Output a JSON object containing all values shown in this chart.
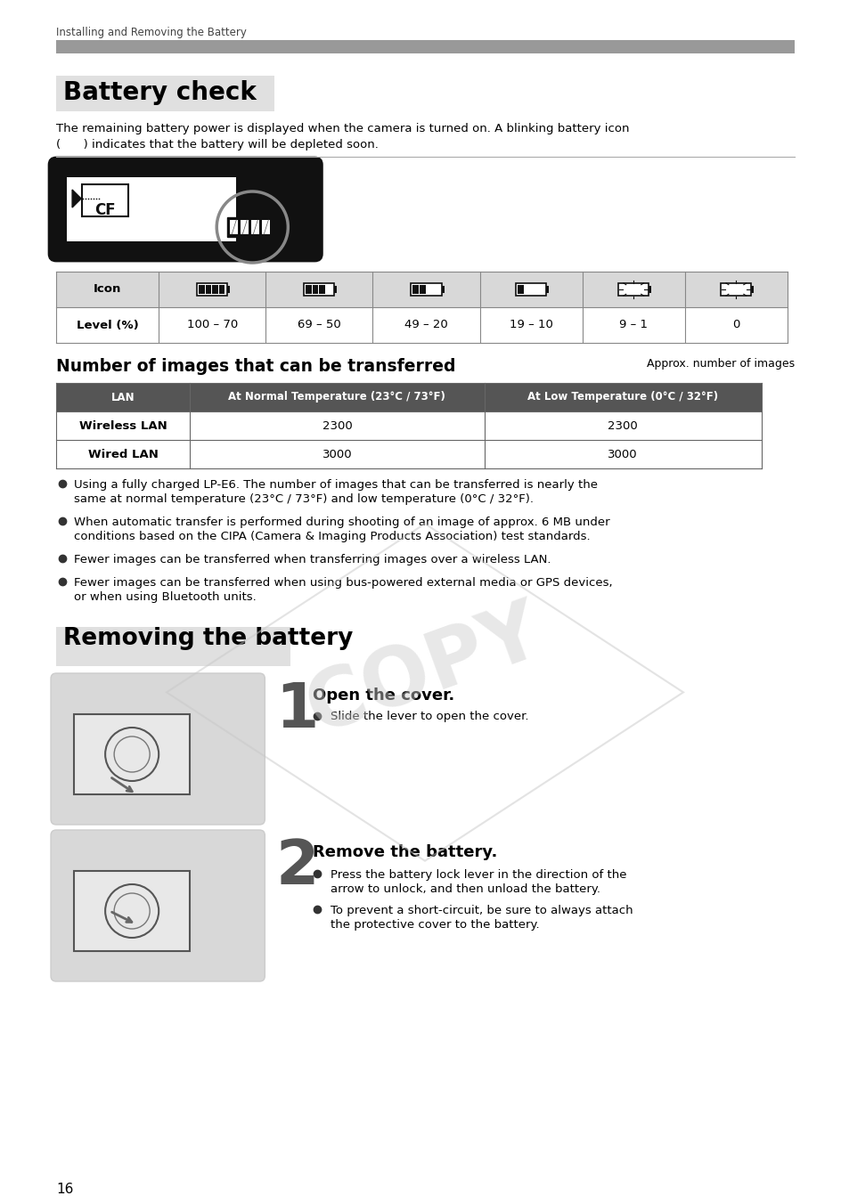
{
  "page_bg": "#ffffff",
  "header_text": "Installing and Removing the Battery",
  "header_bar_color": "#999999",
  "battery_check_title": "Battery check",
  "battery_check_bg": "#e0e0e0",
  "body_line1": "The remaining battery power is displayed when the camera is turned on. A blinking battery icon",
  "body_line2": "(      ) indicates that the battery will be depleted soon.",
  "icon_header": "Icon",
  "level_header": "Level (%)",
  "level_values": [
    "100 – 70",
    "69 – 50",
    "49 – 20",
    "19 – 10",
    "9 – 1",
    "0"
  ],
  "table_header_bg": "#d8d8d8",
  "num_images_title": "Number of images that can be transferred",
  "num_images_subtitle": "Approx. number of images",
  "lan_headers": [
    "LAN",
    "At Normal Temperature (23°C / 73°F)",
    "At Low Temperature (0°C / 32°F)"
  ],
  "lan_rows": [
    [
      "Wireless LAN",
      "2300",
      "2300"
    ],
    [
      "Wired LAN",
      "3000",
      "3000"
    ]
  ],
  "bullets": [
    [
      "Using a fully charged LP-E6. The number of images that can be transferred is nearly the",
      "same at normal temperature (23°C / 73°F) and low temperature (0°C / 32°F)."
    ],
    [
      "When automatic transfer is performed during shooting of an image of approx. 6 MB under",
      "conditions based on the CIPA (Camera & Imaging Products Association) test standards."
    ],
    [
      "Fewer images can be transferred when transferring images over a wireless LAN."
    ],
    [
      "Fewer images can be transferred when using bus-powered external media or GPS devices,",
      "or when using Bluetooth units."
    ]
  ],
  "removing_title": "Removing the battery",
  "removing_bg": "#e0e0e0",
  "step1_title": "Open the cover.",
  "step1_bullets": [
    "Slide the lever to open the cover."
  ],
  "step2_title": "Remove the battery.",
  "step2_bullets": [
    [
      "Press the battery lock lever in the direction of the",
      "arrow to unlock, and then unload the battery."
    ],
    [
      "To prevent a short-circuit, be sure to always attach",
      "the protective cover to the battery."
    ]
  ],
  "page_number": "16",
  "text_color": "#000000",
  "step_number_color": "#555555"
}
